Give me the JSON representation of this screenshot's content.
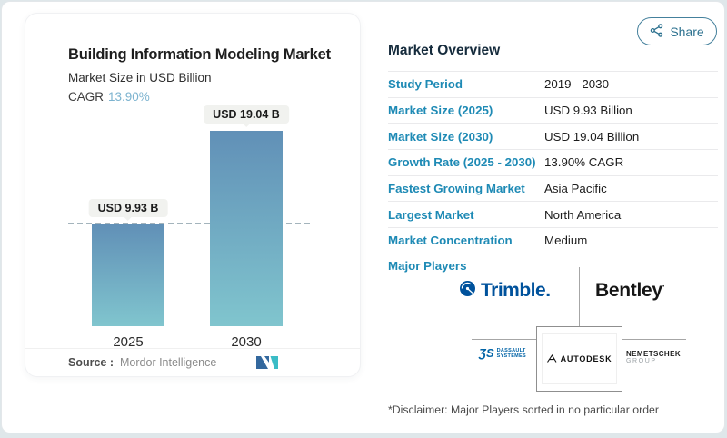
{
  "page": {
    "share_button": "Share",
    "disclaimer": "*Disclaimer: Major Players sorted in no particular order"
  },
  "chart_card": {
    "title": "Building Information Modeling Market",
    "subtitle": "Market Size in USD Billion",
    "cagr_label": "CAGR",
    "cagr_value": "13.90%",
    "source_label": "Source :",
    "source_value": "Mordor Intelligence"
  },
  "chart_data": {
    "type": "bar",
    "categories": [
      "2025",
      "2030"
    ],
    "values": [
      9.93,
      19.04
    ],
    "bar_value_labels": [
      "USD 9.93 B",
      "USD 19.04 B"
    ],
    "title": "Building Information Modeling Market",
    "ylabel": "Market Size in USD Billion",
    "cagr": "13.90%",
    "ylim": [
      0,
      21
    ],
    "reference_line_value": 9.93,
    "grid": false,
    "legend": "none",
    "bar_gradient_top": "#6190b7",
    "bar_gradient_bottom": "#80c5ce"
  },
  "overview": {
    "title": "Market Overview",
    "rows": [
      {
        "label": "Study Period",
        "value": "2019 - 2030"
      },
      {
        "label": "Market Size (2025)",
        "value": "USD 9.93 Billion"
      },
      {
        "label": "Market Size (2030)",
        "value": "USD 19.04 Billion"
      },
      {
        "label": "Growth Rate (2025 - 2030)",
        "value": "13.90% CAGR"
      },
      {
        "label": "Fastest Growing Market",
        "value": "Asia Pacific"
      },
      {
        "label": "Largest Market",
        "value": "North America"
      },
      {
        "label": "Market Concentration",
        "value": "Medium"
      }
    ],
    "major_players_label": "Major Players",
    "major_players": [
      "Trimble",
      "Bentley",
      "Dassault Systèmes",
      "Autodesk",
      "Nemetschek Group"
    ]
  },
  "logos": {
    "trimble_text": "Trimble.",
    "bentley_text": "Bentley",
    "bentley_mark": "·",
    "autodesk_text": "AUTODESK",
    "dassault_mark": "ƷS",
    "dassault_line1": "DASSAULT",
    "dassault_line2": "SYSTEMES",
    "nemetschek_line1": "NEMETSCHEK",
    "nemetschek_line2": "GROUP"
  },
  "colors": {
    "accent_table_label": "#1e8ab5",
    "cagr_value_blue": "#7cb3cf",
    "share_teal": "#2c718f",
    "bar_gradient_top": "#6190b7",
    "bar_gradient_bottom": "#80c5ce",
    "divider_gray": "#a6a6a6"
  }
}
